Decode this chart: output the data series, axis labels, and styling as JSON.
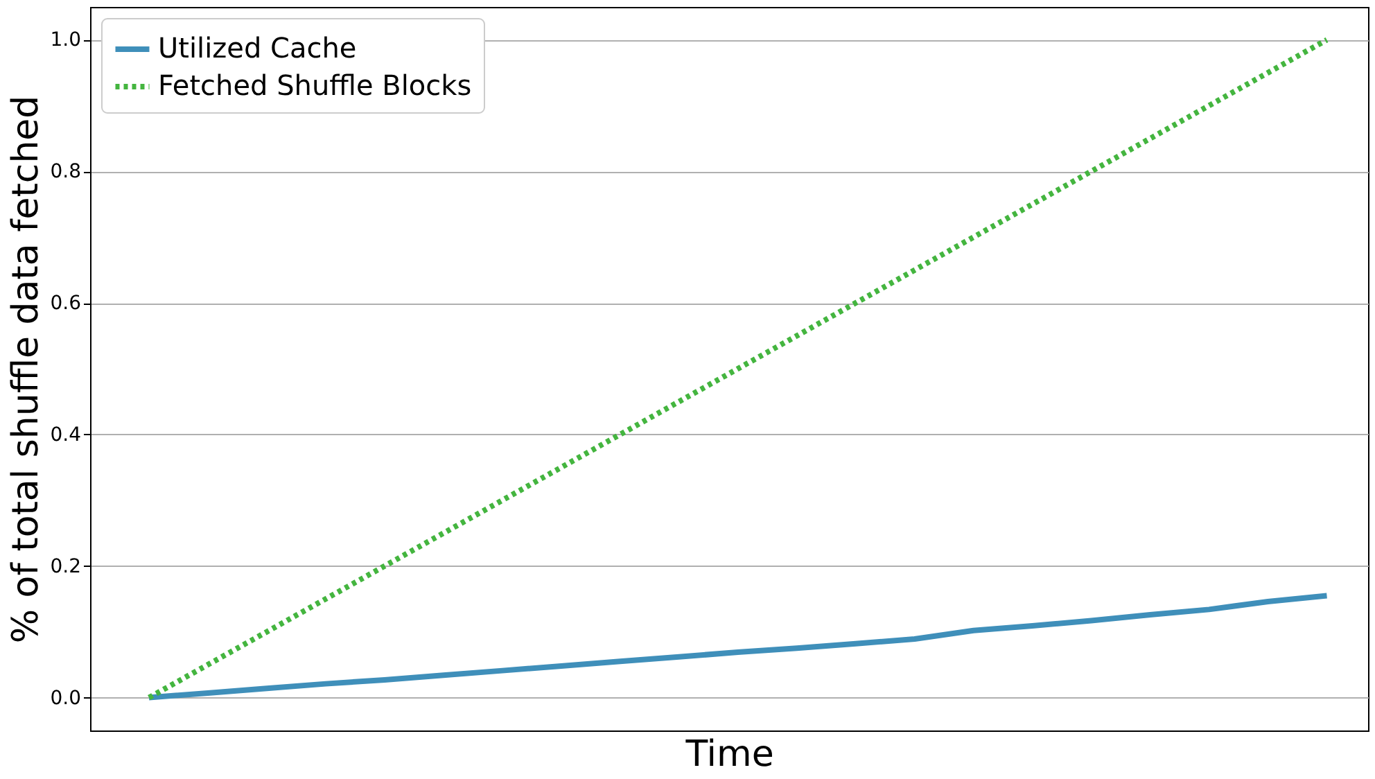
{
  "chart_data": {
    "type": "line",
    "xlabel": "Time",
    "ylabel": "% of total shuffle data fetched",
    "categories": [
      null,
      null,
      null,
      null,
      null,
      null,
      null,
      null,
      null,
      null,
      null,
      null,
      null,
      null,
      null,
      null,
      null,
      null,
      null,
      null,
      null
    ],
    "series": [
      {
        "name": "Utilized Cache",
        "color": "#3f8fba",
        "line_style": "solid",
        "values": [
          0,
          0.007,
          0.014,
          0.021,
          0.027,
          0.034,
          0.041,
          0.048,
          0.055,
          0.062,
          0.069,
          0.075,
          0.082,
          0.089,
          0.102,
          0.109,
          0.117,
          0.126,
          0.134,
          0.146,
          0.155
        ]
      },
      {
        "name": "Fetched Shuffle Blocks",
        "color": "#44b53f",
        "line_style": "dotted",
        "values": [
          0,
          0.05,
          0.1,
          0.15,
          0.2,
          0.25,
          0.3,
          0.35,
          0.4,
          0.45,
          0.5,
          0.55,
          0.6,
          0.65,
          0.7,
          0.75,
          0.8,
          0.85,
          0.9,
          0.95,
          1.0
        ]
      }
    ],
    "ylim": [
      -0.05,
      1.05
    ],
    "yticks": [
      {
        "value": 0,
        "label": "0.0"
      },
      0.2,
      0.4,
      0.6,
      0.8,
      {
        "value": 1,
        "label": "1.0"
      }
    ],
    "grid": "y",
    "legend": "top left",
    "tick_labels": "y",
    "marker": "none"
  }
}
